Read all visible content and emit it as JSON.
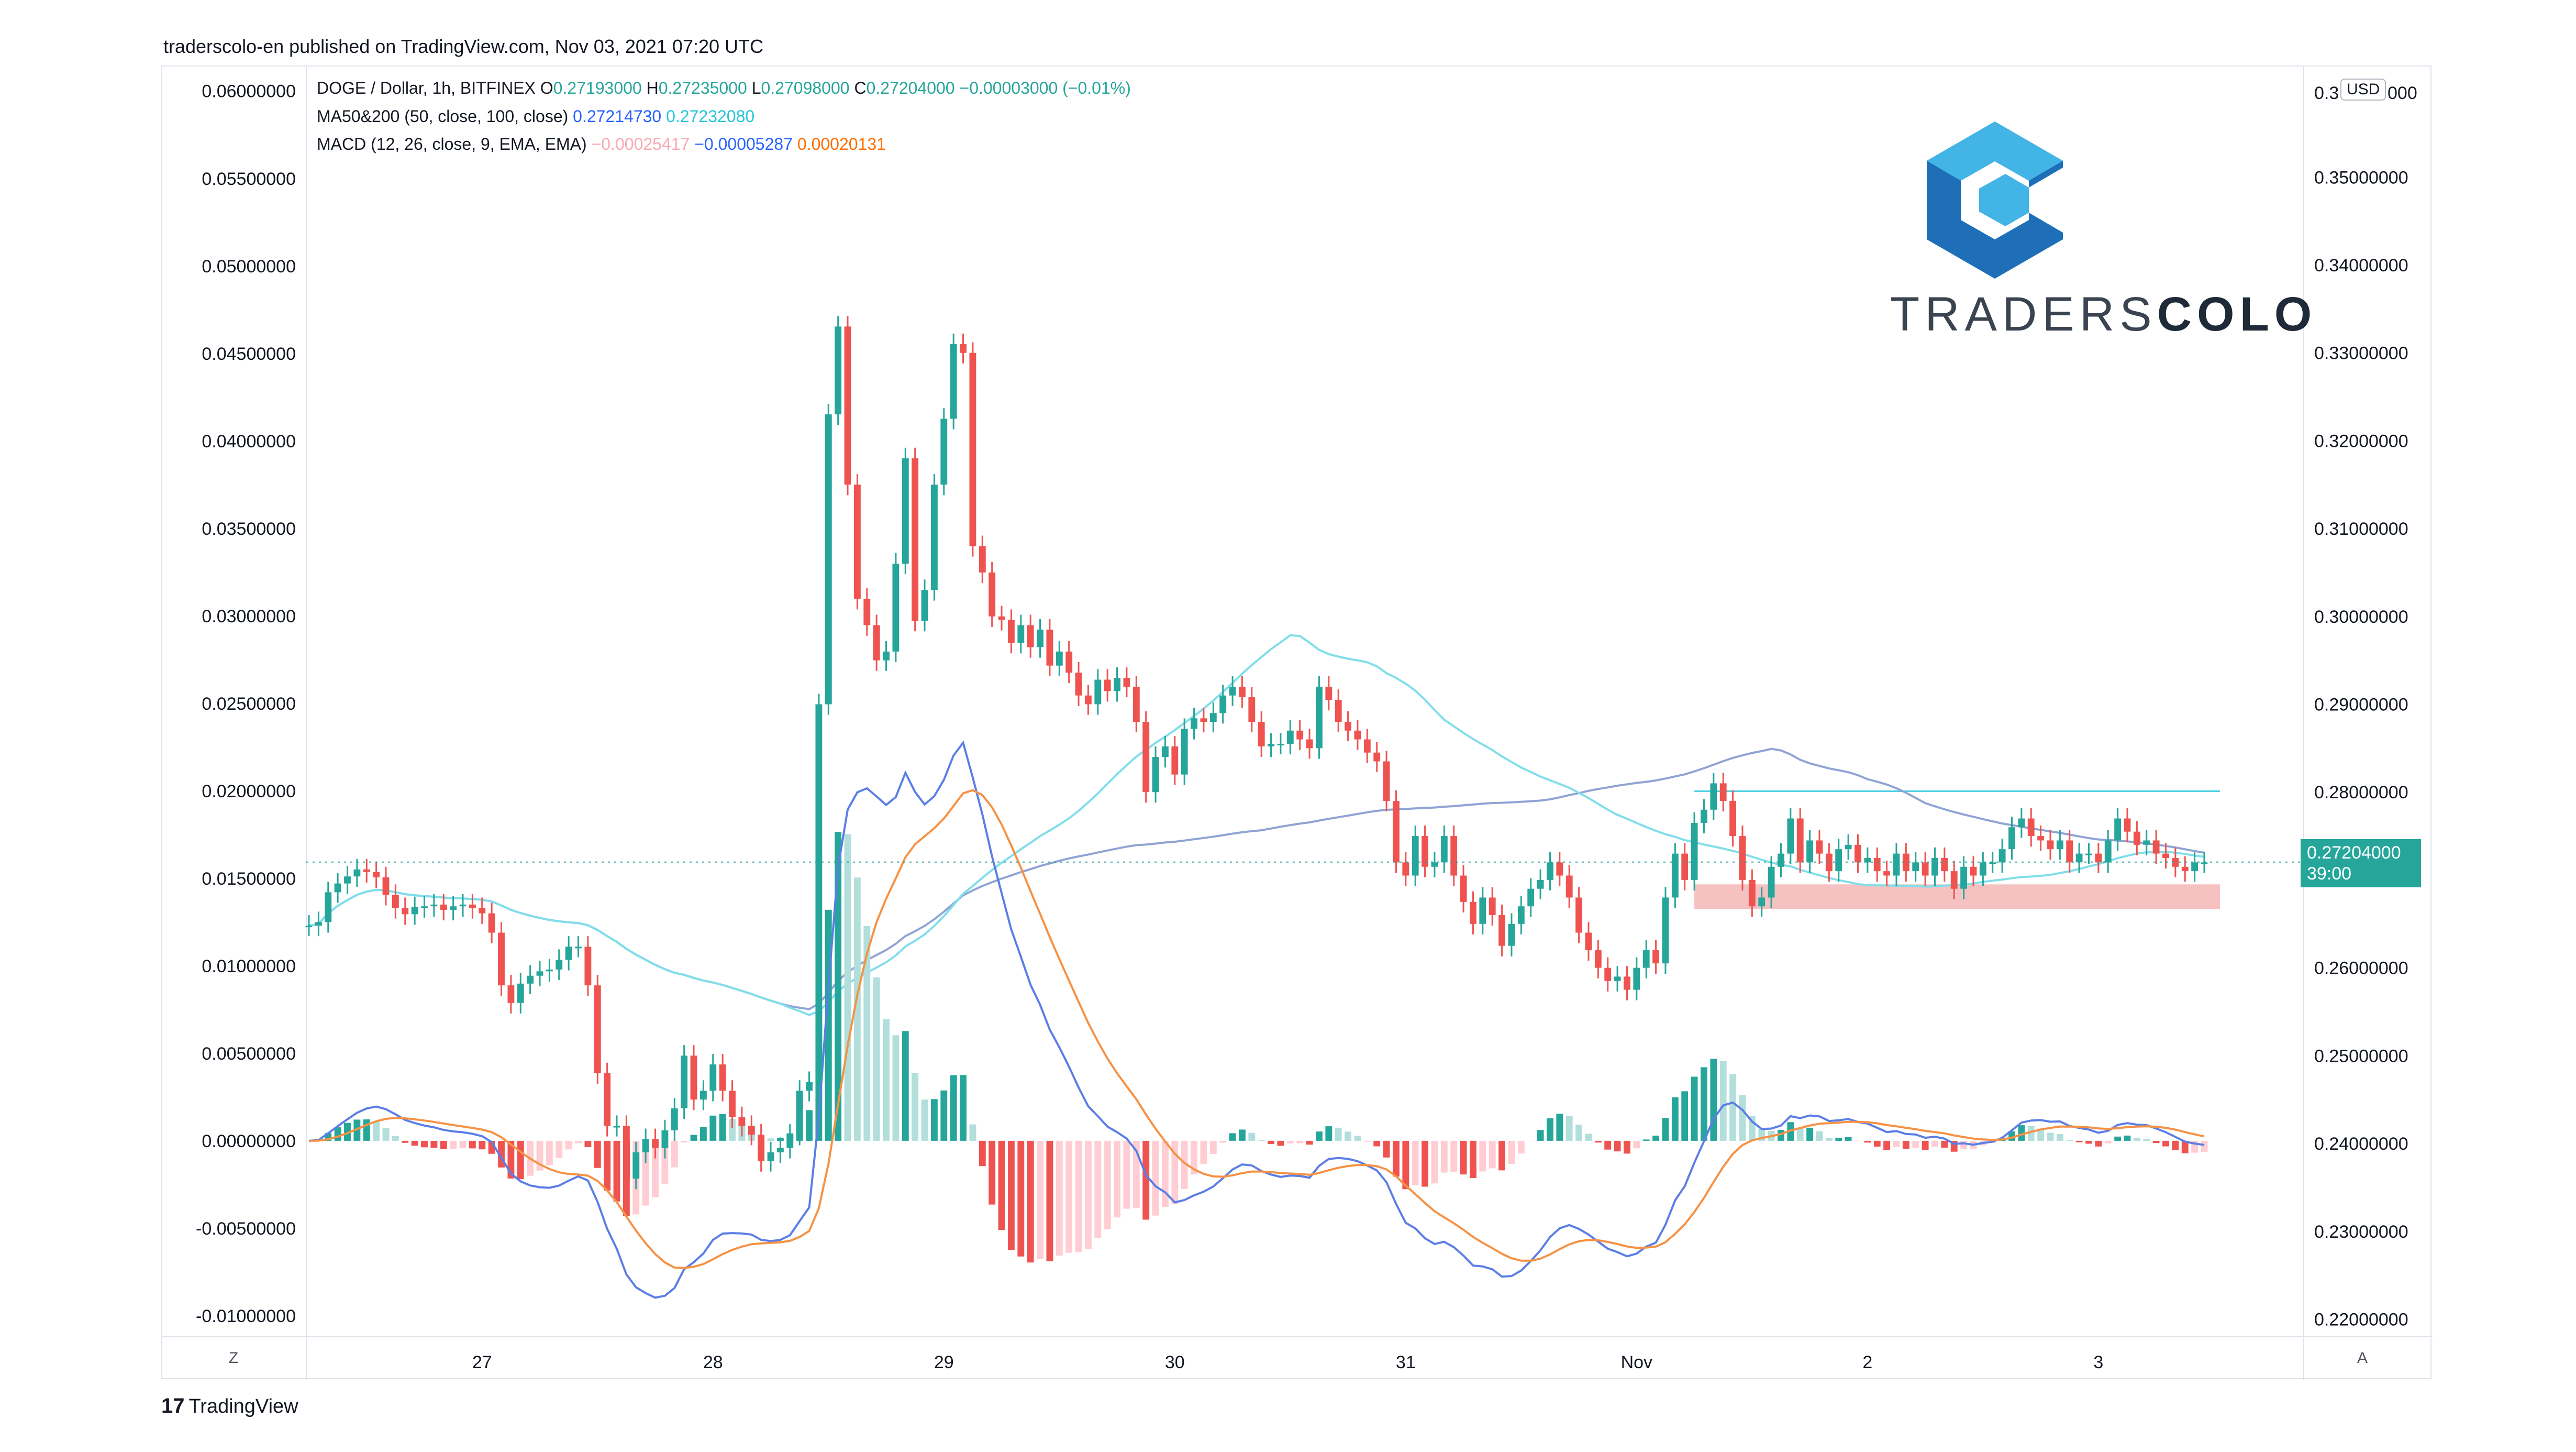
{
  "publisher_line": "traderscolo-en published on TradingView.com, Nov 03, 2021 07:20 UTC",
  "legend": {
    "symbol": "DOGE / Dollar, 1h, BITFINEX",
    "o_label": "O",
    "o": "0.27193000",
    "h_label": "H",
    "h": "0.27235000",
    "l_label": "L",
    "l": "0.27098000",
    "c_label": "C",
    "c": "0.27204000",
    "change": "−0.00003000 (−0.01%)",
    "ma_label": "MA50&200 (50, close, 100, close)",
    "ma1": "0.27214730",
    "ma2": "0.27232080",
    "macd_label": "MACD (12, 26, close, 9, EMA, EMA)",
    "macd_hist": "−0.00025417",
    "macd_line": "−0.00005287",
    "macd_signal": "0.00020131"
  },
  "currency_badge": "USD",
  "price_tag": {
    "price": "0.27204000",
    "countdown": "39:00"
  },
  "logo": {
    "text_light": "TRADERS",
    "text_bold": "COLO"
  },
  "footer": {
    "brand_mark": "17",
    "brand": "TradingView"
  },
  "axis_buttons": {
    "left": "Z",
    "right": "A"
  },
  "colors": {
    "up": "#26a69a",
    "down": "#ef5350",
    "ma50": "#80deea",
    "ma200": "#90a4d4",
    "macd": "#5b7ee5",
    "signal": "#f59245",
    "hist_up_strong": "#26a69a",
    "hist_up_weak": "#b2dfdb",
    "hist_down_strong": "#ef5350",
    "hist_down_weak": "#ffcdd2",
    "zone": "#f4b6b6",
    "level_line": "#4dd0e1",
    "logo_dark": "#1e6fb8",
    "logo_light": "#42b4e6"
  },
  "chart_data": {
    "type": "candlestick",
    "title": "DOGE / Dollar, 1h, BITFINEX",
    "x_ticks": [
      "27",
      "28",
      "29",
      "30",
      "31",
      "Nov",
      "2",
      "3"
    ],
    "right_axis_ticks": [
      "0.35000000",
      "0.34000000",
      "0.33000000",
      "0.32000000",
      "0.31000000",
      "0.30000000",
      "0.29000000",
      "0.28000000",
      "0.26000000",
      "0.25000000",
      "0.24000000",
      "0.23000000",
      "0.22000000"
    ],
    "right_axis_range": [
      0.218,
      0.362
    ],
    "left_axis_ticks": [
      "0.06000000",
      "0.05500000",
      "0.05000000",
      "0.04500000",
      "0.04000000",
      "0.03500000",
      "0.03000000",
      "0.02500000",
      "0.02000000",
      "0.01500000",
      "0.01000000",
      "0.00500000",
      "0.00000000",
      "-0.00500000",
      "-0.01000000"
    ],
    "left_axis_range": [
      -0.0112,
      0.0611
    ],
    "right_axis_partial_top_label": "0.3",
    "right_axis_partial_top_suffix": "000",
    "current_price": 0.27204,
    "resistance_level": 0.2801,
    "support_zone": [
      0.2667,
      0.2695
    ],
    "series": [
      {
        "name": "DOGE / Dollar",
        "kind": "price_close_hourly_approx",
        "values": [
          0.2648,
          0.2652,
          0.2686,
          0.2696,
          0.2704,
          0.2712,
          0.2709,
          0.2703,
          0.2683,
          0.2668,
          0.2661,
          0.2669,
          0.267,
          0.2672,
          0.2666,
          0.267,
          0.2672,
          0.2668,
          0.2662,
          0.264,
          0.258,
          0.256,
          0.2582,
          0.2591,
          0.2596,
          0.2598,
          0.2609,
          0.2624,
          0.2624,
          0.258,
          0.248,
          0.242,
          0.242,
          0.236,
          0.239,
          0.2405,
          0.2395,
          0.2415,
          0.244,
          0.25,
          0.245,
          0.246,
          0.249,
          0.246,
          0.243,
          0.242,
          0.241,
          0.238,
          0.239,
          0.2395,
          0.241,
          0.246,
          0.247,
          0.29,
          0.323,
          0.333,
          0.315,
          0.302,
          0.299,
          0.295,
          0.296,
          0.306,
          0.318,
          0.2995,
          0.303,
          0.315,
          0.3225,
          0.331,
          0.33,
          0.308,
          0.305,
          0.3,
          0.2996,
          0.297,
          0.299,
          0.2965,
          0.2985,
          0.2944,
          0.296,
          0.2936,
          0.291,
          0.29,
          0.2928,
          0.2915,
          0.293,
          0.292,
          0.288,
          0.28,
          0.284,
          0.2852,
          0.282,
          0.2872,
          0.2884,
          0.288,
          0.289,
          0.291,
          0.292,
          0.2908,
          0.288,
          0.2852,
          0.2855,
          0.2855,
          0.287,
          0.286,
          0.285,
          0.292,
          0.2905,
          0.288,
          0.287,
          0.286,
          0.2845,
          0.2835,
          0.279,
          0.272,
          0.2705,
          0.275,
          0.2715,
          0.272,
          0.275,
          0.2705,
          0.2675,
          0.265,
          0.268,
          0.266,
          0.2625,
          0.265,
          0.267,
          0.269,
          0.27,
          0.272,
          0.2705,
          0.268,
          0.264,
          0.262,
          0.26,
          0.2585,
          0.259,
          0.2575,
          0.26,
          0.262,
          0.2605,
          0.268,
          0.273,
          0.27,
          0.2765,
          0.278,
          0.281,
          0.279,
          0.275,
          0.27,
          0.267,
          0.268,
          0.2715,
          0.273,
          0.277,
          0.272,
          0.2745,
          0.273,
          0.271,
          0.2735,
          0.274,
          0.272,
          0.2725,
          0.271,
          0.2705,
          0.273,
          0.271,
          0.272,
          0.2705,
          0.2725,
          0.271,
          0.269,
          0.2715,
          0.2705,
          0.272,
          0.272,
          0.2735,
          0.276,
          0.277,
          0.275,
          0.2745,
          0.2735,
          0.2745,
          0.272,
          0.273,
          0.273,
          0.272,
          0.2745,
          0.277,
          0.2755,
          0.274,
          0.2745,
          0.273,
          0.2725,
          0.2715,
          0.271,
          0.272,
          0.272
        ]
      },
      {
        "name": "MA50",
        "kind": "line"
      },
      {
        "name": "MA200",
        "kind": "line"
      },
      {
        "name": "MACD",
        "kind": "line"
      },
      {
        "name": "Signal",
        "kind": "line"
      },
      {
        "name": "Histogram",
        "kind": "bars"
      }
    ],
    "grid": true
  }
}
